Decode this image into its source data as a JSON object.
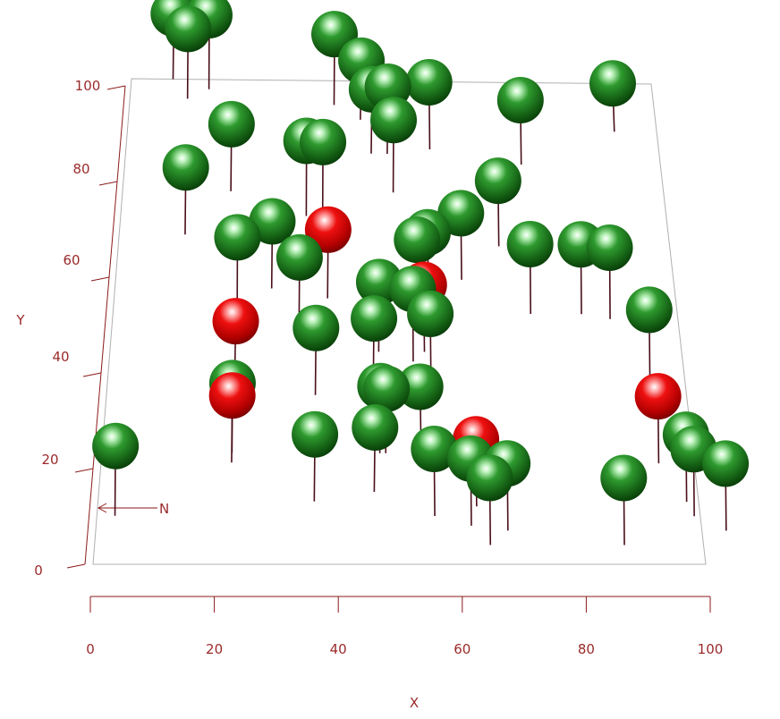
{
  "colors": {
    "axis": "#9a2a2a",
    "box": "#b0b0b0",
    "stem": "#4a0f1a",
    "sphere_normal": "#1f7a1f",
    "sphere_highlight": "#e01010"
  },
  "chart_data": {
    "type": "scatter",
    "xlabel": "X",
    "ylabel": "Y",
    "xlim": [
      0,
      100
    ],
    "ylim": [
      0,
      100
    ],
    "x_ticks": [
      0,
      20,
      40,
      60,
      80,
      100
    ],
    "y_ticks": [
      0,
      20,
      40,
      60,
      80,
      100
    ],
    "x_tick_labels": [
      "0",
      "20",
      "40",
      "60",
      "80",
      "100"
    ],
    "y_tick_labels": [
      "0",
      "20",
      "40",
      "60",
      "80",
      "100"
    ],
    "north_label": "N",
    "grid": false,
    "points": [
      {
        "x": 15,
        "y": 98,
        "h": 0.88,
        "hl": false
      },
      {
        "x": 39,
        "y": 95,
        "h": 0.82,
        "hl": false
      },
      {
        "x": 8,
        "y": 100,
        "h": 0.72,
        "hl": false
      },
      {
        "x": 11,
        "y": 96,
        "h": 0.8,
        "hl": false
      },
      {
        "x": 92,
        "y": 90,
        "h": 0.4,
        "hl": false
      },
      {
        "x": 44,
        "y": 92,
        "h": 0.6,
        "hl": false
      },
      {
        "x": 57,
        "y": 86,
        "h": 0.75,
        "hl": false
      },
      {
        "x": 49,
        "y": 85,
        "h": 0.75,
        "hl": false
      },
      {
        "x": 46,
        "y": 85,
        "h": 0.7,
        "hl": false
      },
      {
        "x": 74,
        "y": 83,
        "h": 0.7,
        "hl": false
      },
      {
        "x": 20,
        "y": 77,
        "h": 0.75,
        "hl": false
      },
      {
        "x": 50,
        "y": 77,
        "h": 0.85,
        "hl": false
      },
      {
        "x": 34,
        "y": 72,
        "h": 0.9,
        "hl": false
      },
      {
        "x": 37,
        "y": 72,
        "h": 0.88,
        "hl": false
      },
      {
        "x": 12,
        "y": 68,
        "h": 0.75,
        "hl": false
      },
      {
        "x": 69,
        "y": 66,
        "h": 0.72,
        "hl": false
      },
      {
        "x": 62,
        "y": 59,
        "h": 0.74,
        "hl": false
      },
      {
        "x": 28,
        "y": 57,
        "h": 0.75,
        "hl": false
      },
      {
        "x": 56,
        "y": 56,
        "h": 0.65,
        "hl": false
      },
      {
        "x": 38,
        "y": 55,
        "h": 0.78,
        "hl": true
      },
      {
        "x": 22,
        "y": 52,
        "h": 0.9,
        "hl": false
      },
      {
        "x": 54,
        "y": 53,
        "h": 0.78,
        "hl": false
      },
      {
        "x": 74,
        "y": 52,
        "h": 0.8,
        "hl": false
      },
      {
        "x": 83,
        "y": 52,
        "h": 0.8,
        "hl": false
      },
      {
        "x": 88,
        "y": 51,
        "h": 0.83,
        "hl": false
      },
      {
        "x": 33,
        "y": 49,
        "h": 0.8,
        "hl": false
      },
      {
        "x": 47,
        "y": 44,
        "h": 0.8,
        "hl": false
      },
      {
        "x": 55,
        "y": 44,
        "h": 0.75,
        "hl": true
      },
      {
        "x": 53,
        "y": 42,
        "h": 0.85,
        "hl": false
      },
      {
        "x": 22,
        "y": 38,
        "h": 0.6,
        "hl": true
      },
      {
        "x": 94,
        "y": 39,
        "h": 0.75,
        "hl": false
      },
      {
        "x": 46,
        "y": 37,
        "h": 0.75,
        "hl": false
      },
      {
        "x": 56,
        "y": 38,
        "h": 0.75,
        "hl": false
      },
      {
        "x": 36,
        "y": 35,
        "h": 0.75,
        "hl": false
      },
      {
        "x": 47,
        "y": 23,
        "h": 0.75,
        "hl": false
      },
      {
        "x": 48,
        "y": 23,
        "h": 0.7,
        "hl": false
      },
      {
        "x": 54,
        "y": 24,
        "h": 0.65,
        "hl": false
      },
      {
        "x": 22,
        "y": 23,
        "h": 0.8,
        "hl": false
      },
      {
        "x": 22,
        "y": 21,
        "h": 0.75,
        "hl": true
      },
      {
        "x": 94,
        "y": 21,
        "h": 0.75,
        "hl": true
      },
      {
        "x": 46,
        "y": 15,
        "h": 0.7,
        "hl": false
      },
      {
        "x": 36,
        "y": 13,
        "h": 0.75,
        "hl": false
      },
      {
        "x": 63,
        "y": 12,
        "h": 0.75,
        "hl": true
      },
      {
        "x": 3,
        "y": 10,
        "h": 0.8,
        "hl": false
      },
      {
        "x": 56,
        "y": 10,
        "h": 0.75,
        "hl": false
      },
      {
        "x": 62,
        "y": 8,
        "h": 0.75,
        "hl": false
      },
      {
        "x": 68,
        "y": 7,
        "h": 0.75,
        "hl": false
      },
      {
        "x": 98,
        "y": 13,
        "h": 0.75,
        "hl": false
      },
      {
        "x": 99,
        "y": 10,
        "h": 0.75,
        "hl": false
      },
      {
        "x": 104,
        "y": 7,
        "h": 0.75,
        "hl": false
      },
      {
        "x": 65,
        "y": 4,
        "h": 0.75,
        "hl": false
      },
      {
        "x": 87,
        "y": 4,
        "h": 0.75,
        "hl": false
      }
    ]
  }
}
